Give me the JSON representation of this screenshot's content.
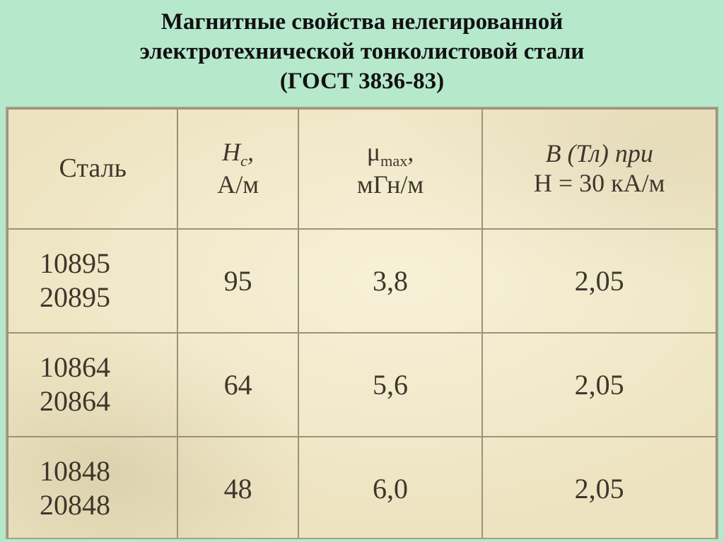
{
  "title": {
    "line1": "Магнитные свойства нелегированной",
    "line2": "электротехнической тонколистовой стали",
    "line3": "(ГОСТ 3836-83)",
    "fontsize": 33,
    "color": "#111111"
  },
  "table": {
    "background_color": "#ede3c0",
    "border_color": "#9b9278",
    "text_color": "#3d372c",
    "header_fontsize": 36,
    "body_fontsize": 40,
    "columns": [
      {
        "key": "steel",
        "width_pct": 24,
        "header_main": "Сталь"
      },
      {
        "key": "hc",
        "width_pct": 17,
        "header_top": "H",
        "header_top_sub": "c",
        "header_top_tail": ",",
        "header_bot": "А/м"
      },
      {
        "key": "mumax",
        "width_pct": 26,
        "header_top": "μ",
        "header_top_sub": "max",
        "header_top_tail": ",",
        "header_bot": "мГн/м"
      },
      {
        "key": "b",
        "width_pct": 33,
        "header_top_full": "B (Тл)  при",
        "header_bot_full": "H = 30  кА/м"
      }
    ],
    "rows": [
      {
        "steel_a": "10895",
        "steel_b": "20895",
        "hc": "95",
        "mumax": "3,8",
        "b": "2,05"
      },
      {
        "steel_a": "10864",
        "steel_b": "20864",
        "hc": "64",
        "mumax": "5,6",
        "b": "2,05"
      },
      {
        "steel_a": "10848",
        "steel_b": "20848",
        "hc": "48",
        "mumax": "6,0",
        "b": "2,05"
      }
    ]
  }
}
